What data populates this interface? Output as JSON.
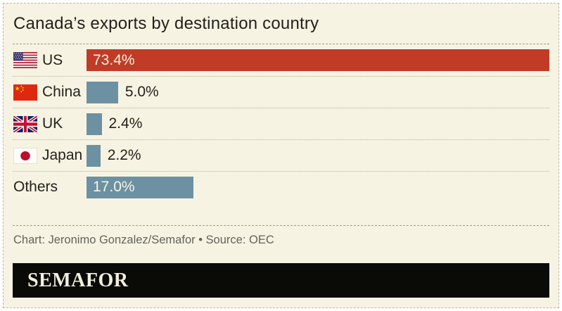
{
  "page": {
    "background": "#ffffff"
  },
  "card": {
    "background": "#f7f3e2",
    "border_color": "#b8b8ab"
  },
  "header": {
    "title": "Canada’s exports by destination country"
  },
  "chart_data": {
    "type": "bar",
    "orientation": "horizontal",
    "title": "Canada’s exports by destination country",
    "categories": [
      "US",
      "China",
      "UK",
      "Japan",
      "Others"
    ],
    "values": [
      73.4,
      5.0,
      2.4,
      2.2,
      17.0
    ],
    "value_labels": [
      "73.4%",
      "5.0%",
      "2.4%",
      "2.2%",
      "17.0%"
    ],
    "unit": "%",
    "xlim": [
      0,
      73.4
    ],
    "grid": false,
    "legend": false,
    "colors": {
      "highlight": "#c23b27",
      "default": "#6c91a3"
    },
    "bars": [
      {
        "label": "US",
        "value": 73.4,
        "display": "73.4%",
        "flag": "us",
        "color": "#c23b27",
        "value_inside": true
      },
      {
        "label": "China",
        "value": 5.0,
        "display": "5.0%",
        "flag": "cn",
        "color": "#6c91a3",
        "value_inside": false
      },
      {
        "label": "UK",
        "value": 2.4,
        "display": "2.4%",
        "flag": "uk",
        "color": "#6c91a3",
        "value_inside": false
      },
      {
        "label": "Japan",
        "value": 2.2,
        "display": "2.2%",
        "flag": "jp",
        "color": "#6c91a3",
        "value_inside": false
      },
      {
        "label": "Others",
        "value": 17.0,
        "display": "17.0%",
        "flag": null,
        "color": "#6c91a3",
        "value_inside": true
      }
    ]
  },
  "footer": {
    "credit": "Chart: Jeronimo Gonzalez/Semafor • Source: OEC",
    "logo_text": "SEMAFOR"
  }
}
